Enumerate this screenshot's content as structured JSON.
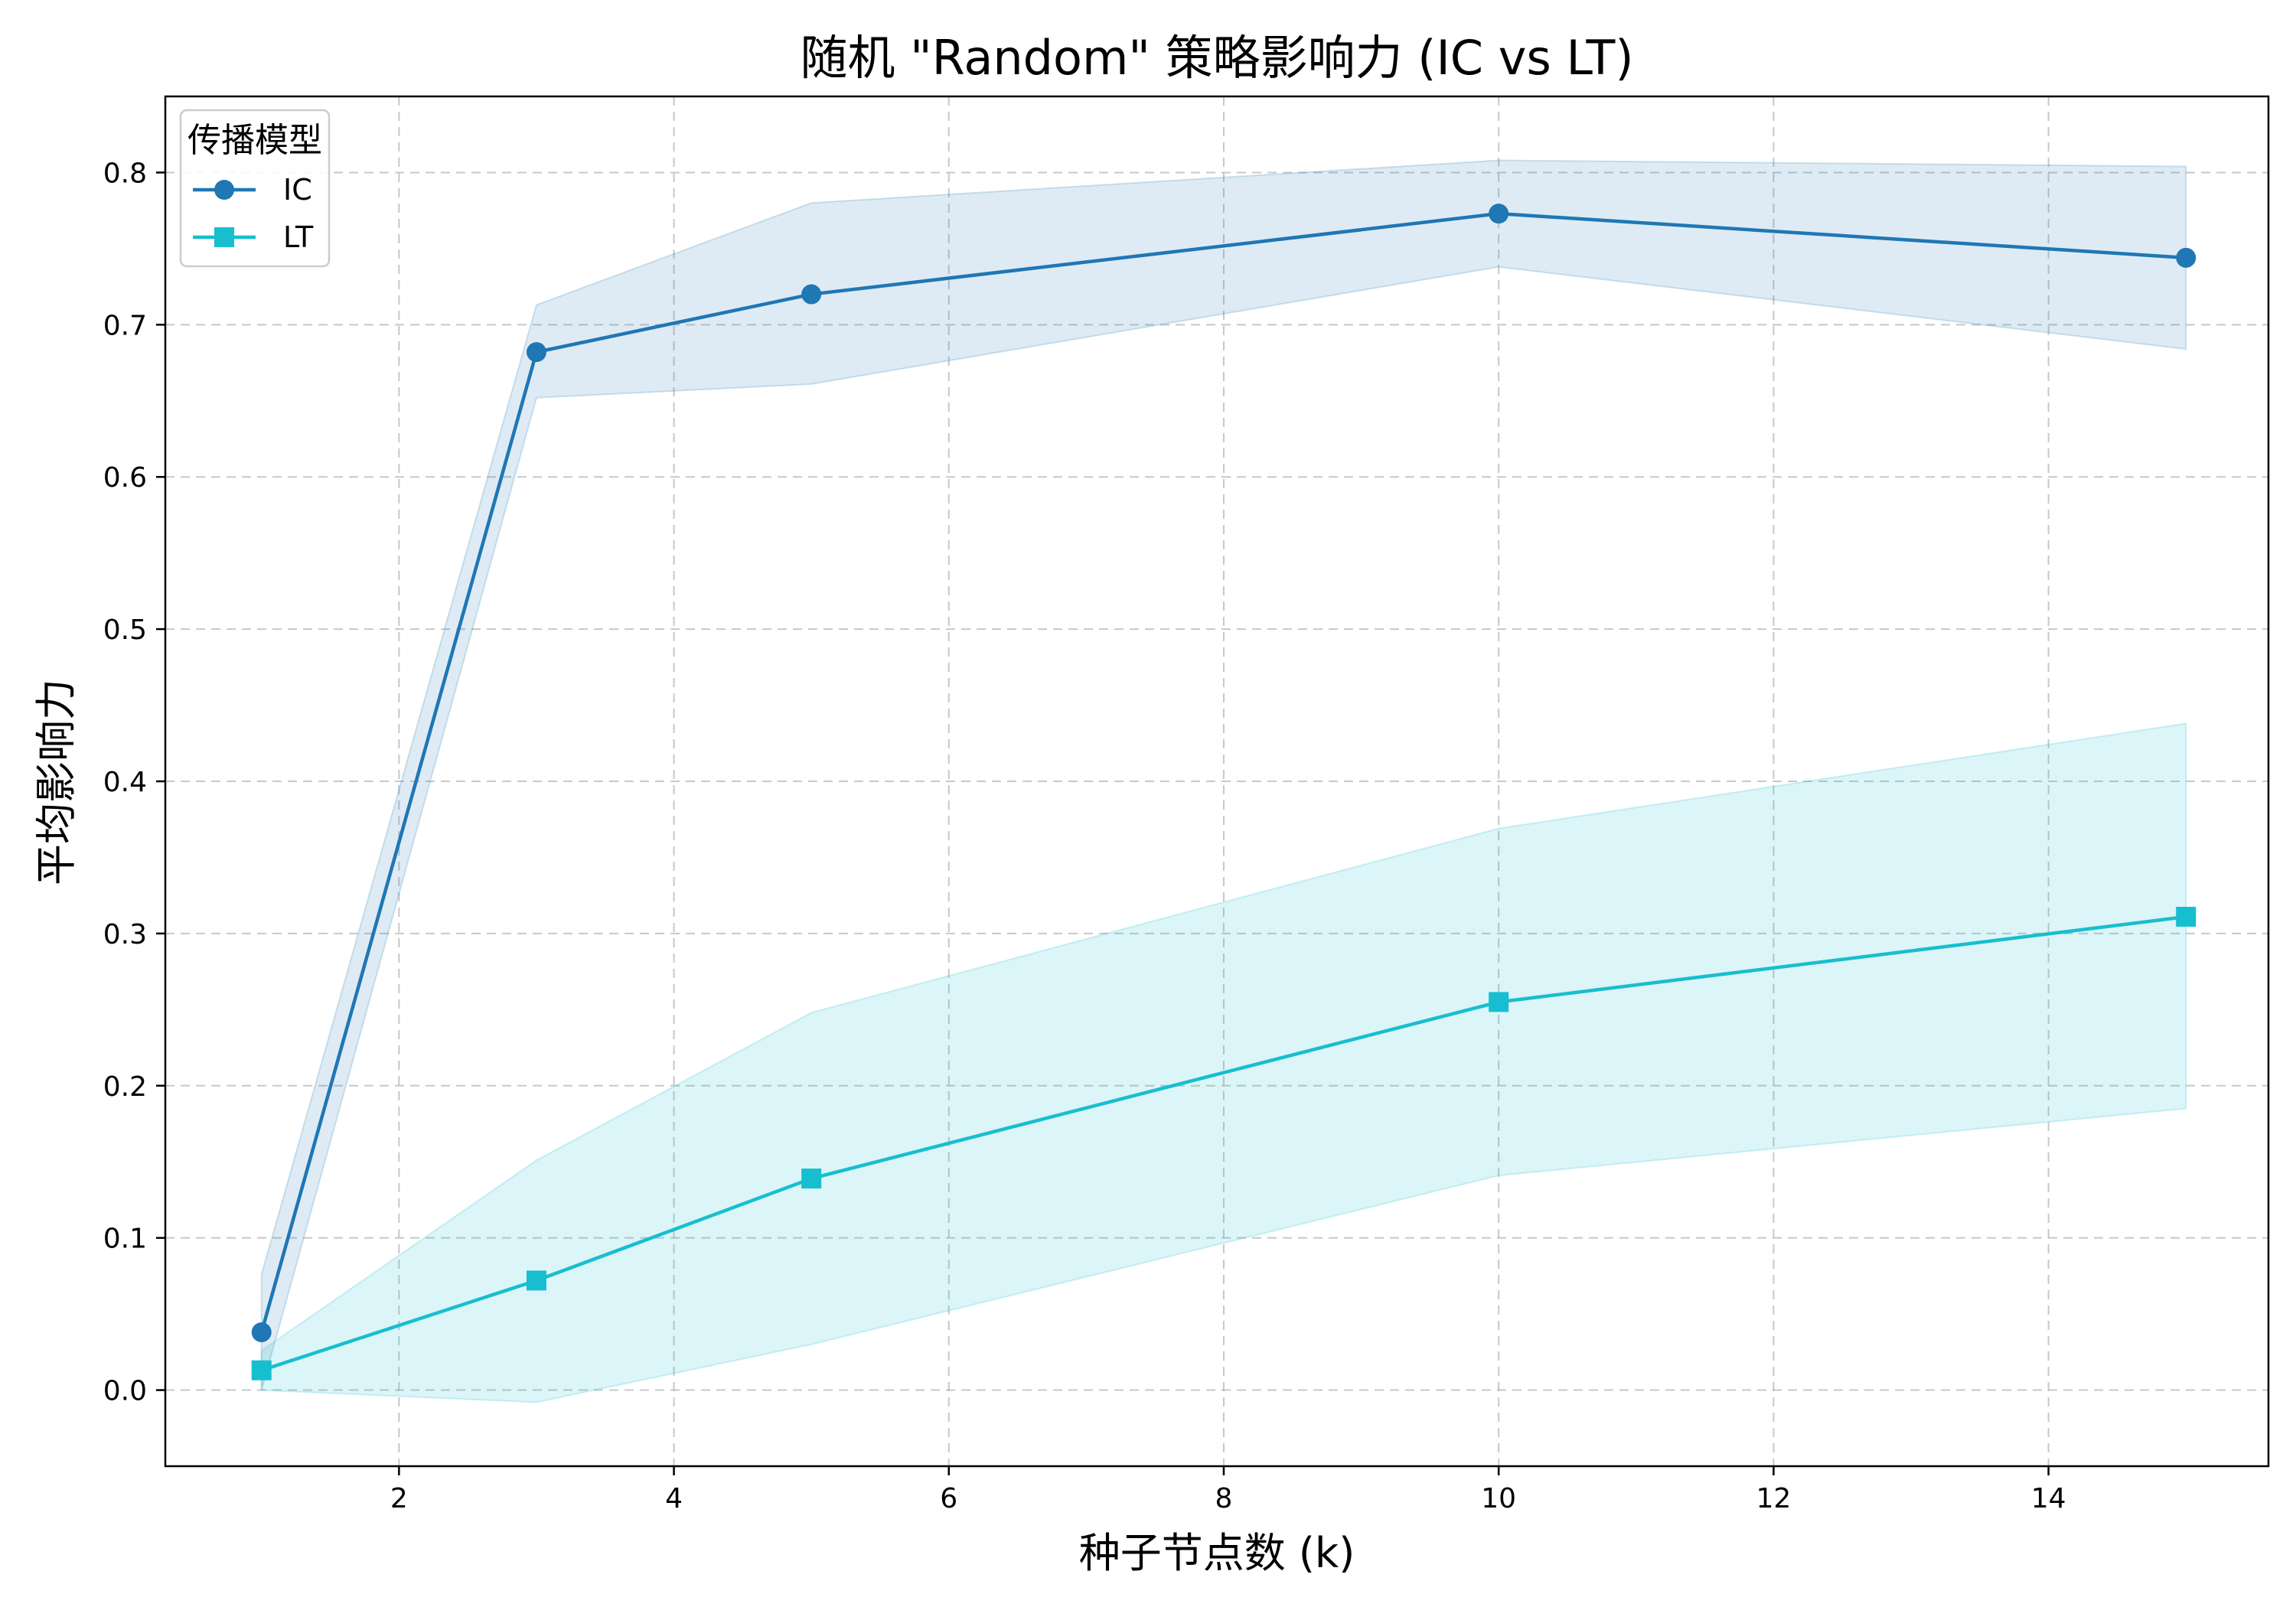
{
  "chart_data": {
    "type": "line",
    "title": "随机 \"Random\" 策略影响力 (IC vs LT)",
    "xlabel": "种子节点数 (k)",
    "ylabel": "平均影响力",
    "xlim": [
      0.3,
      15.6
    ],
    "ylim": [
      -0.05,
      0.85
    ],
    "x_ticks": [
      2,
      4,
      6,
      8,
      10,
      12,
      14
    ],
    "y_ticks": [
      0.0,
      0.1,
      0.2,
      0.3,
      0.4,
      0.5,
      0.6,
      0.7,
      0.8
    ],
    "grid": true,
    "legend_title": "传播模型",
    "legend_position": "upper-left",
    "series": [
      {
        "name": "IC",
        "marker": "circle",
        "color": "#1f77b4",
        "x": [
          1,
          3,
          5,
          10,
          15
        ],
        "y": [
          0.038,
          0.682,
          0.72,
          0.773,
          0.744
        ],
        "lower": [
          0.0,
          0.652,
          0.661,
          0.738,
          0.684
        ],
        "upper": [
          0.076,
          0.713,
          0.78,
          0.808,
          0.804
        ]
      },
      {
        "name": "LT",
        "marker": "square",
        "color": "#17becf",
        "x": [
          1,
          3,
          5,
          10,
          15
        ],
        "y": [
          0.013,
          0.072,
          0.139,
          0.255,
          0.311
        ],
        "lower": [
          0.0,
          -0.008,
          0.03,
          0.141,
          0.185
        ],
        "upper": [
          0.026,
          0.151,
          0.248,
          0.369,
          0.438
        ]
      }
    ]
  }
}
